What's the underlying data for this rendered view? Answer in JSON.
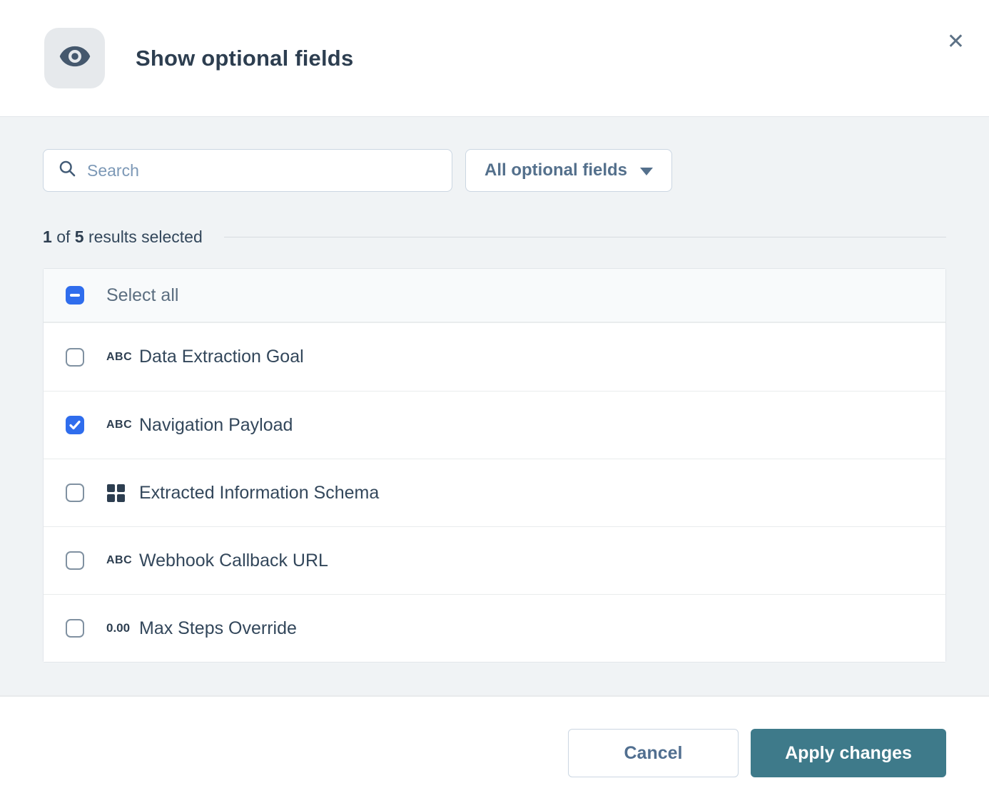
{
  "modal": {
    "title": "Show optional fields",
    "header_icon": "eye-icon",
    "close_glyph": "✕"
  },
  "search": {
    "placeholder": "Search",
    "icon": "magnifier-icon",
    "value": ""
  },
  "filter_dropdown": {
    "selected_label": "All optional fields",
    "icon": "chevron-down-icon"
  },
  "results": {
    "selected": "1",
    "of_word": "of",
    "total": "5",
    "suffix": "results selected"
  },
  "select_all": {
    "label": "Select all",
    "state": "indeterminate"
  },
  "fields": [
    {
      "label": "Data Extraction Goal",
      "type": "text",
      "icon": "abc-text-icon",
      "glyph": "ABC",
      "checked": false
    },
    {
      "label": "Navigation Payload",
      "type": "text",
      "icon": "abc-text-icon",
      "glyph": "ABC",
      "checked": true
    },
    {
      "label": "Extracted Information Schema",
      "type": "schema",
      "icon": "grid-icon",
      "glyph": "",
      "checked": false
    },
    {
      "label": "Webhook Callback URL",
      "type": "text",
      "icon": "abc-text-icon",
      "glyph": "ABC",
      "checked": false
    },
    {
      "label": "Max Steps Override",
      "type": "number",
      "icon": "number-icon",
      "glyph": "0.00",
      "checked": false
    }
  ],
  "footer": {
    "cancel_label": "Cancel",
    "apply_label": "Apply changes"
  },
  "colors": {
    "accent_blue": "#2f6ded",
    "apply_teal": "#3e7a8a",
    "title_text": "#2d3e50",
    "body_text": "#33475b",
    "input_border": "#cbd6e2",
    "panel_bg": "#f0f3f5"
  }
}
